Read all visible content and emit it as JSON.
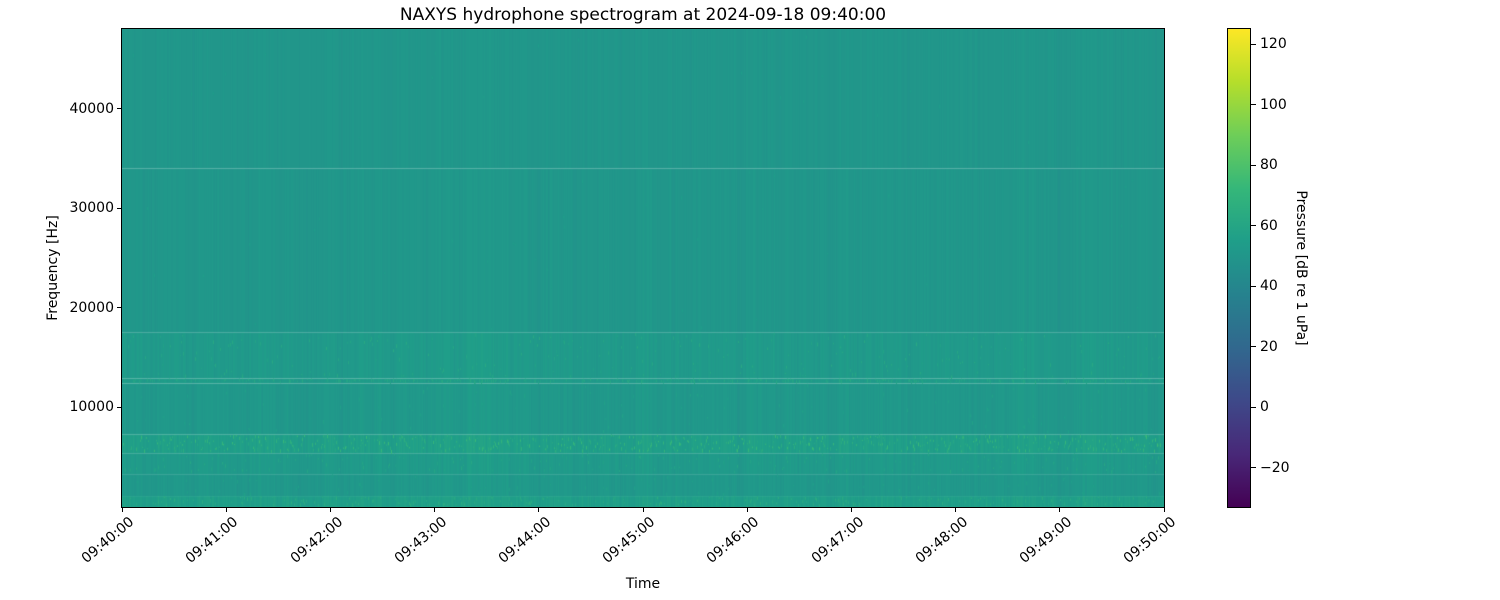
{
  "chart_data": {
    "type": "heatmap",
    "subtype": "spectrogram",
    "title": "NAXYS hydrophone spectrogram at 2024-09-18 09:40:00",
    "xlabel": "Time",
    "ylabel": "Frequency [Hz]",
    "x_ticks": [
      "09:40:00",
      "09:41:00",
      "09:42:00",
      "09:43:00",
      "09:44:00",
      "09:45:00",
      "09:46:00",
      "09:47:00",
      "09:48:00",
      "09:49:00",
      "09:50:00"
    ],
    "x_range_seconds": [
      0,
      600
    ],
    "y_ticks": [
      10000,
      20000,
      30000,
      40000
    ],
    "y_range_hz": [
      0,
      48000
    ],
    "grid": false,
    "colorbar": {
      "label": "Pressure [dB re 1 uPa]",
      "ticks": [
        120,
        100,
        80,
        60,
        40,
        20,
        0,
        -20
      ],
      "range_db": [
        -33,
        125
      ],
      "colormap": "viridis",
      "viridis_stops": [
        "#440154",
        "#482878",
        "#3e4989",
        "#31688e",
        "#26828e",
        "#1f9e89",
        "#35b779",
        "#6ece58",
        "#b5de2b",
        "#fde725"
      ],
      "position": "right"
    },
    "background_level_db": 50,
    "base_color": "#1f8e89",
    "bands": [
      {
        "f0": 0,
        "f1": 1100,
        "db": 7.0,
        "tex": 1.1,
        "speckle": 0.35,
        "note": "lighter low-frequency band"
      },
      {
        "f0": 1100,
        "f1": 3300,
        "db": 1.5,
        "tex": 1.0,
        "speckle": 0.15
      },
      {
        "f0": 3300,
        "f1": 5400,
        "db": 3.0,
        "tex": 1.1,
        "speckle": 0.3
      },
      {
        "f0": 5400,
        "f1": 7300,
        "db": 7.0,
        "tex": 1.2,
        "speckle": 0.95,
        "note": "bright speckled tonal band ~6.5 kHz"
      },
      {
        "f0": 7300,
        "f1": 12400,
        "db": 1.5,
        "tex": 1.0,
        "speckle": 0.2
      },
      {
        "f0": 12400,
        "f1": 12900,
        "db": 4.0,
        "tex": 1.0,
        "speckle": 0.4
      },
      {
        "f0": 12900,
        "f1": 17500,
        "db": 3.0,
        "tex": 1.1,
        "speckle": 0.45,
        "note": "textured mid band"
      },
      {
        "f0": 17500,
        "f1": 34000,
        "db": 0.5,
        "tex": 0.8,
        "speckle": 0.08
      },
      {
        "f0": 34000,
        "f1": 48000,
        "db": 0.3,
        "tex": 0.6,
        "speckle": 0.05
      }
    ],
    "highlight_columns": [
      {
        "t": 207,
        "w": 10,
        "db": 2.5
      },
      {
        "t": 302,
        "w": 6,
        "db": 1.5
      },
      {
        "t": 558,
        "w": 8,
        "db": 2.0
      }
    ]
  }
}
